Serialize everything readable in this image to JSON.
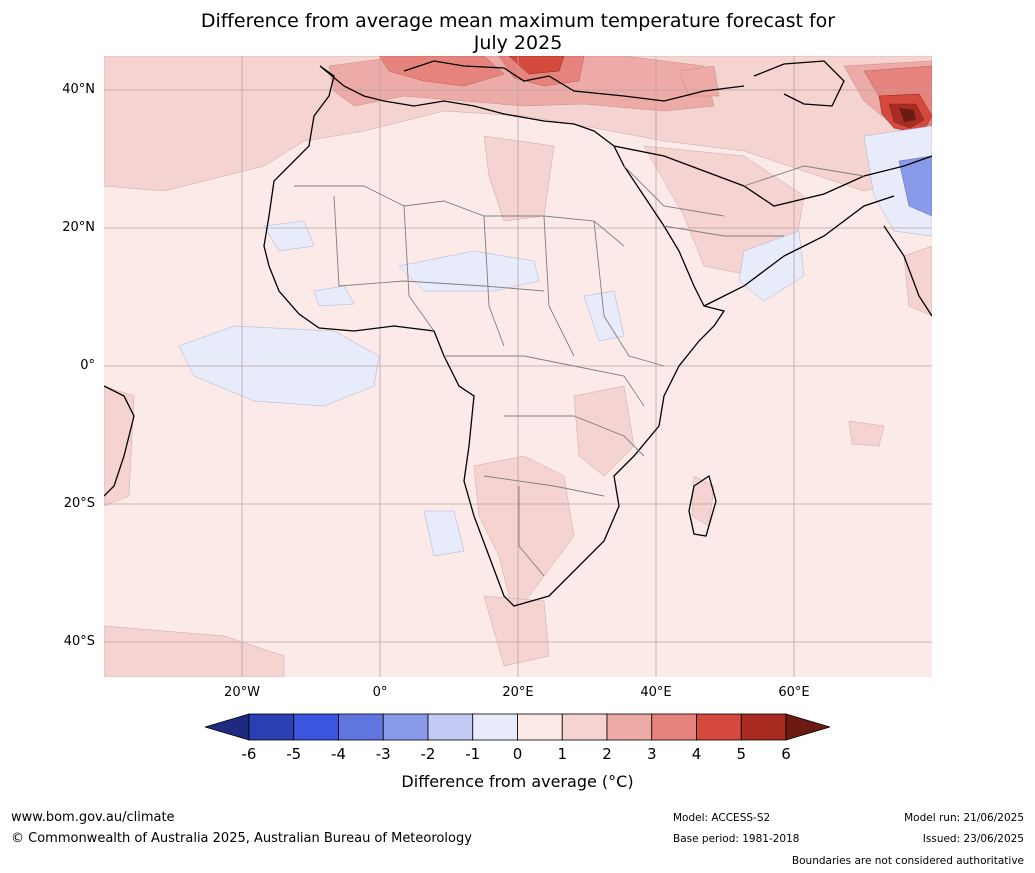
{
  "title_line1": "Difference from average mean maximum temperature forecast for",
  "title_line2": "July 2025",
  "lat_labels": [
    "40°N",
    "20°N",
    "0°",
    "20°S",
    "40°S"
  ],
  "lon_labels": [
    "20°W",
    "0°",
    "20°E",
    "40°E",
    "60°E"
  ],
  "colorbar": {
    "ticks": [
      "-6",
      "-5",
      "-4",
      "-3",
      "-2",
      "-1",
      "0",
      "1",
      "2",
      "3",
      "4",
      "5",
      "6"
    ],
    "colors": [
      "#1d2a80",
      "#2a3fb0",
      "#3b55e0",
      "#5f75e0",
      "#8a9aea",
      "#c2c9f2",
      "#e8ebf9",
      "#fbeae8",
      "#f5d3d0",
      "#edaba7",
      "#e6837c",
      "#d64a3d",
      "#a92b22",
      "#6b1a14"
    ],
    "label": "Difference from average (°C)"
  },
  "legend": [
    {
      "label": "-6",
      "color": "#1d2a80"
    },
    {
      "label": "-5",
      "color": "#2a3fb0"
    },
    {
      "label": "-4",
      "color": "#3b55e0"
    },
    {
      "label": "-3",
      "color": "#5f75e0"
    },
    {
      "label": "-2",
      "color": "#8a9aea"
    },
    {
      "label": "-1",
      "color": "#c2c9f2"
    },
    {
      "label": "0",
      "color": "#e8ebf9"
    },
    {
      "label": "1",
      "color": "#fbeae8"
    },
    {
      "label": "2",
      "color": "#f5d3d0"
    },
    {
      "label": "3",
      "color": "#edaba7"
    },
    {
      "label": "4",
      "color": "#e6837c"
    },
    {
      "label": "5",
      "color": "#d64a3d"
    },
    {
      "label": "6",
      "color": "#a92b22"
    }
  ],
  "footer": {
    "url": "www.bom.gov.au/climate",
    "copyright": "© Commonwealth of Australia 2025, Australian Bureau of Meteorology",
    "model": "Model: ACCESS-S2",
    "base_period": "Base period: 1981-2018",
    "model_run": "Model run: 21/06/2025",
    "issued": "Issued: 23/06/2025",
    "disclaimer": "Boundaries are not considered authoritative"
  }
}
